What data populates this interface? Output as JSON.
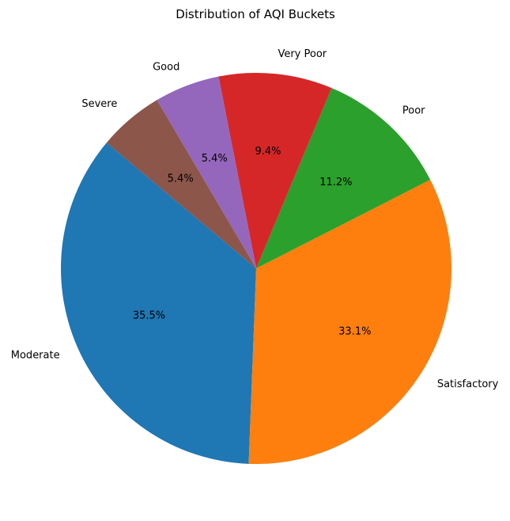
{
  "chart_data": {
    "type": "pie",
    "title": "Distribution of AQI Buckets",
    "labels": [
      "Moderate",
      "Satisfactory",
      "Poor",
      "Very Poor",
      "Good",
      "Severe"
    ],
    "values": [
      35.5,
      33.1,
      11.2,
      9.4,
      5.4,
      5.4
    ],
    "percent_labels": [
      "35.5%",
      "33.1%",
      "11.2%",
      "9.4%",
      "5.4%",
      "5.4%"
    ],
    "colors": [
      "#1f77b4",
      "#ff7f0e",
      "#2ca02c",
      "#d62728",
      "#9467bd",
      "#8c564b"
    ],
    "start_angle_deg": 140,
    "direction": "counterclockwise"
  }
}
